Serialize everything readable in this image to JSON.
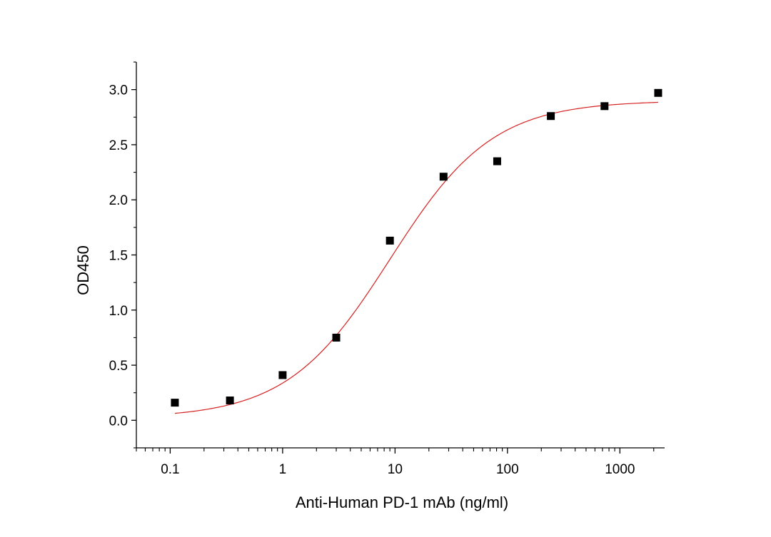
{
  "chart_data": {
    "type": "scatter",
    "xlabel": "Anti-Human PD-1 mAb (ng/ml)",
    "ylabel": "OD450",
    "xscale": "log",
    "xlim": [
      0.05,
      2500
    ],
    "ylim": [
      -0.25,
      3.25
    ],
    "xticks": [
      0.1,
      1,
      10,
      100,
      1000
    ],
    "xtick_labels": [
      "0.1",
      "1",
      "10",
      "100",
      "1000"
    ],
    "yticks": [
      0,
      0.5,
      1,
      1.5,
      2,
      2.5,
      3
    ],
    "ytick_labels": [
      "0.0",
      "0.5",
      "1.0",
      "1.5",
      "2.0",
      "2.5",
      "3.0"
    ],
    "grid": false,
    "points": [
      {
        "x": 0.11,
        "y": 0.16
      },
      {
        "x": 0.34,
        "y": 0.18
      },
      {
        "x": 1.0,
        "y": 0.41
      },
      {
        "x": 3.0,
        "y": 0.75
      },
      {
        "x": 9.0,
        "y": 1.63
      },
      {
        "x": 27.0,
        "y": 2.21
      },
      {
        "x": 81.0,
        "y": 2.35
      },
      {
        "x": 243.0,
        "y": 2.76
      },
      {
        "x": 730.0,
        "y": 2.85
      },
      {
        "x": 2190.0,
        "y": 2.97
      }
    ],
    "fit": {
      "model": "4PL",
      "bottom": 0.02,
      "top": 2.9,
      "ec50": 9.0,
      "hill": 0.95,
      "x_range": [
        0.11,
        2190
      ]
    },
    "colors": {
      "marker": "#000000",
      "fit_line": "#d62020",
      "axis": "#000000"
    }
  }
}
